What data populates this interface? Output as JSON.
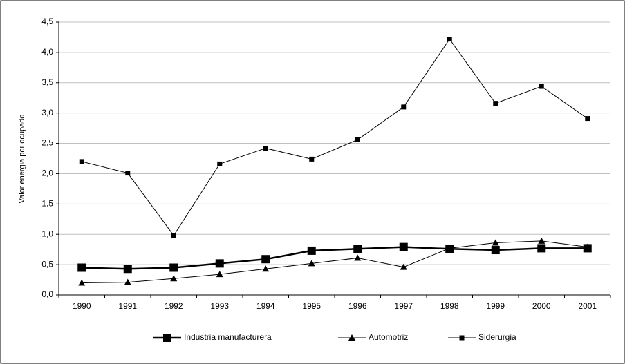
{
  "chart_data": {
    "type": "line",
    "y_label": "Valor energia por ocupado",
    "categories": [
      "1990",
      "1991",
      "1992",
      "1993",
      "1994",
      "1995",
      "1996",
      "1997",
      "1998",
      "1999",
      "2000",
      "2001"
    ],
    "series": [
      {
        "name": "Industria manufacturera",
        "color": "#000000",
        "marker": "big-square",
        "values": [
          0.45,
          0.43,
          0.45,
          0.52,
          0.59,
          0.73,
          0.76,
          0.79,
          0.76,
          0.74,
          0.77,
          0.77
        ]
      },
      {
        "name": "Automotriz",
        "color": "#000000",
        "marker": "triangle",
        "values": [
          0.2,
          0.21,
          0.27,
          0.34,
          0.43,
          0.52,
          0.61,
          0.46,
          0.77,
          0.86,
          0.89,
          0.79
        ]
      },
      {
        "name": "Siderurgia",
        "color": "#000000",
        "marker": "small-square",
        "values": [
          2.2,
          2.01,
          0.98,
          2.16,
          2.42,
          2.24,
          2.56,
          3.1,
          4.22,
          3.16,
          3.44,
          2.91
        ]
      }
    ],
    "ylim": [
      0,
      4.5
    ],
    "yticks": [
      {
        "value": 0,
        "label": "0,0"
      },
      {
        "value": 0.5,
        "label": "0,5"
      },
      {
        "value": 1,
        "label": "1,0"
      },
      {
        "value": 1.5,
        "label": "1,5"
      },
      {
        "value": 2,
        "label": "2,0"
      },
      {
        "value": 2.5,
        "label": "2,5"
      },
      {
        "value": 3,
        "label": "3,0"
      },
      {
        "value": 3.5,
        "label": "3,5"
      },
      {
        "value": 4,
        "label": "4,0"
      },
      {
        "value": 4.5,
        "label": "4,5"
      }
    ],
    "grid": true,
    "legend": "bottom"
  }
}
